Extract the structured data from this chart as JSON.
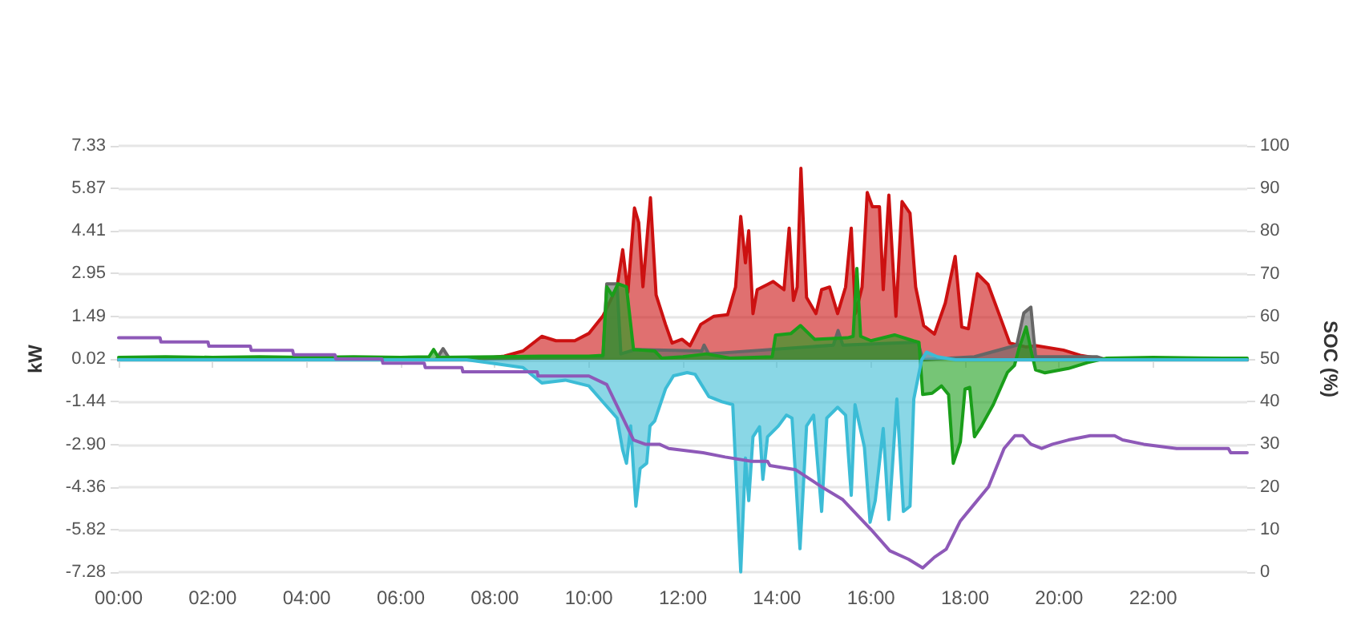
{
  "chart_data": {
    "type": "area",
    "ylabel": "kW",
    "y2label": "SOC (%)",
    "xlim": [
      0,
      24
    ],
    "xticks": [
      {
        "value": 0,
        "label": "00:00"
      },
      {
        "value": 2,
        "label": "02:00"
      },
      {
        "value": 4,
        "label": "04:00"
      },
      {
        "value": 6,
        "label": "06:00"
      },
      {
        "value": 8,
        "label": "08:00"
      },
      {
        "value": 10,
        "label": "10:00"
      },
      {
        "value": 12,
        "label": "12:00"
      },
      {
        "value": 14,
        "label": "14:00"
      },
      {
        "value": 16,
        "label": "16:00"
      },
      {
        "value": 18,
        "label": "18:00"
      },
      {
        "value": 20,
        "label": "20:00"
      },
      {
        "value": 22,
        "label": "22:00"
      }
    ],
    "ylim": [
      -7.28,
      7.33
    ],
    "yticks": [
      -7.28,
      -5.82,
      -4.36,
      {
        "value": -2.9,
        "label": "-2.90"
      },
      -1.44,
      0.02,
      1.49,
      2.95,
      4.41,
      5.87,
      7.33
    ],
    "y2lim": [
      0,
      100
    ],
    "y2ticks": [
      0,
      10,
      20,
      30,
      40,
      50,
      60,
      70,
      80,
      90,
      100
    ],
    "grid": "y",
    "marker": "none",
    "series": [
      {
        "color": "#cc1111",
        "x": [
          0,
          7.5,
          8.2,
          8.6,
          9.0,
          9.3,
          9.7,
          10.0,
          10.3,
          10.6,
          10.72,
          10.83,
          10.97,
          11.06,
          11.15,
          11.31,
          11.43,
          11.63,
          11.77,
          11.98,
          12.15,
          12.38,
          12.66,
          12.95,
          13.12,
          13.23,
          13.33,
          13.4,
          13.49,
          13.58,
          13.8,
          13.92,
          14.15,
          14.26,
          14.35,
          14.43,
          14.51,
          14.63,
          14.83,
          14.95,
          15.12,
          15.29,
          15.46,
          15.58,
          15.67,
          15.81,
          15.92,
          16.03,
          16.18,
          16.26,
          16.38,
          16.53,
          16.66,
          16.83,
          16.95,
          17.12,
          17.35,
          17.58,
          17.79,
          17.93,
          18.07,
          18.26,
          18.49,
          18.72,
          18.95,
          19.29,
          19.52,
          20.09,
          20.45,
          20.78,
          21.0,
          24
        ],
        "values": [
          0,
          0,
          0.12,
          0.3,
          0.8,
          0.65,
          0.65,
          0.9,
          1.5,
          2.5,
          3.77,
          2.31,
          5.2,
          4.7,
          2.5,
          5.55,
          2.22,
          1.21,
          0.57,
          0.7,
          0.48,
          1.21,
          1.49,
          1.54,
          2.49,
          4.91,
          3.32,
          4.42,
          1.58,
          2.4,
          2.58,
          2.68,
          2.4,
          4.51,
          2.03,
          2.49,
          6.56,
          2.13,
          1.58,
          2.4,
          2.49,
          1.58,
          2.49,
          4.51,
          1.58,
          2.49,
          5.73,
          5.24,
          5.24,
          2.4,
          5.64,
          1.49,
          5.42,
          5.02,
          2.49,
          1.17,
          0.88,
          1.94,
          3.54,
          1.12,
          1.06,
          2.95,
          2.58,
          1.58,
          0.57,
          0.44,
          0.48,
          0.33,
          0.15,
          0.06,
          0,
          0
        ]
      },
      {
        "color": "#666666",
        "x": [
          0,
          6.75,
          6.9,
          7.05,
          10.3,
          10.38,
          10.6,
          10.68,
          11.0,
          12.4,
          12.45,
          12.55,
          15.2,
          15.3,
          15.4,
          17.0,
          17.1,
          18.2,
          19.1,
          19.25,
          19.4,
          19.5,
          20.8,
          21,
          24
        ],
        "values": [
          0,
          0,
          0.38,
          0,
          0.1,
          2.6,
          2.6,
          0.2,
          0.35,
          0.3,
          0.5,
          0.2,
          0.5,
          1.0,
          0.5,
          0.6,
          0,
          0.1,
          0.5,
          1.6,
          1.8,
          0.1,
          0.1,
          0,
          0
        ]
      },
      {
        "color": "#1a9e1a",
        "x": [
          0,
          1,
          2,
          3,
          4,
          5,
          6,
          6.6,
          6.7,
          6.8,
          8,
          9,
          10,
          10.3,
          10.38,
          10.5,
          10.62,
          10.8,
          10.95,
          11.4,
          11.55,
          12,
          12.5,
          13,
          13.9,
          13.97,
          14.3,
          14.5,
          14.8,
          15.5,
          15.62,
          15.7,
          15.78,
          16.0,
          16.5,
          16.9,
          17.02,
          17.1,
          17.3,
          17.5,
          17.65,
          17.75,
          17.9,
          18.0,
          18.1,
          18.2,
          18.35,
          18.6,
          18.9,
          19.05,
          19.15,
          19.3,
          19.42,
          19.5,
          19.7,
          20.2,
          20.6,
          21,
          22,
          23,
          24
        ],
        "values": [
          0.08,
          0.1,
          0.08,
          0.1,
          0.08,
          0.1,
          0.08,
          0.1,
          0.35,
          0.08,
          0.1,
          0.12,
          0.12,
          0.15,
          2.5,
          2.2,
          2.6,
          2.5,
          0.35,
          0.3,
          0.05,
          0.1,
          0.2,
          0.05,
          0.1,
          0.84,
          0.9,
          1.17,
          0.7,
          0.75,
          0.8,
          3.13,
          0.8,
          0.65,
          0.85,
          0.65,
          0.6,
          -1.19,
          -1.15,
          -0.9,
          -1.2,
          -3.55,
          -2.82,
          -1.0,
          -0.95,
          -2.64,
          -2.27,
          -1.54,
          -0.44,
          -0.2,
          0.4,
          1.12,
          0.2,
          -0.35,
          -0.45,
          -0.3,
          -0.1,
          0.05,
          0.08,
          0.06,
          0.05
        ]
      },
      {
        "color": "#3cbcd6",
        "x": [
          0,
          7.4,
          8.0,
          8.6,
          9.0,
          9.5,
          10.0,
          10.3,
          10.6,
          10.72,
          10.8,
          10.89,
          11.0,
          11.09,
          11.23,
          11.3,
          11.4,
          11.63,
          11.8,
          12.09,
          12.26,
          12.55,
          12.83,
          13.06,
          13.23,
          13.33,
          13.4,
          13.49,
          13.63,
          13.7,
          13.8,
          14.03,
          14.2,
          14.32,
          14.49,
          14.63,
          14.78,
          14.95,
          15.06,
          15.29,
          15.46,
          15.58,
          15.66,
          15.86,
          15.98,
          16.09,
          16.26,
          16.38,
          16.55,
          16.69,
          16.83,
          16.91,
          17.0,
          17.08,
          17.18,
          17.41,
          17.8,
          24
        ],
        "values": [
          0,
          0,
          -0.13,
          -0.27,
          -0.8,
          -0.7,
          -0.9,
          -1.45,
          -2.0,
          -3.1,
          -3.55,
          -2.27,
          -5.02,
          -3.73,
          -3.55,
          -2.27,
          -2.1,
          -1.0,
          -0.55,
          -0.44,
          -0.5,
          -1.26,
          -1.44,
          -1.54,
          -7.27,
          -3.37,
          -4.83,
          -2.64,
          -2.3,
          -4.1,
          -2.64,
          -2.27,
          -1.9,
          -2.0,
          -6.48,
          -2.27,
          -1.9,
          -5.2,
          -2.0,
          -1.63,
          -1.9,
          -4.65,
          -1.54,
          -3.0,
          -5.57,
          -4.83,
          -2.36,
          -5.48,
          -1.35,
          -5.2,
          -5.02,
          -1.35,
          -0.62,
          0,
          0.26,
          0.1,
          0,
          0
        ]
      },
      {
        "type": "line",
        "axis": "y2",
        "color": "#8e59b8",
        "x": [
          0,
          0.88,
          0.9,
          1.9,
          1.92,
          2.8,
          2.82,
          3.7,
          3.72,
          4.6,
          4.62,
          5.6,
          5.62,
          6.5,
          6.52,
          7.3,
          7.32,
          8.9,
          8.92,
          10.0,
          10.38,
          10.95,
          11.2,
          11.5,
          11.7,
          12.43,
          12.9,
          13.46,
          13.8,
          13.85,
          14.4,
          14.95,
          15.4,
          16.0,
          16.4,
          16.8,
          17.1,
          17.35,
          17.6,
          17.9,
          18.2,
          18.5,
          18.83,
          19.06,
          19.23,
          19.4,
          19.63,
          19.86,
          20.2,
          20.66,
          21.18,
          21.35,
          21.8,
          22.5,
          23.6,
          23.65,
          24
        ],
        "values": [
          55,
          55,
          54,
          54,
          53,
          53,
          52,
          52,
          51,
          51,
          50,
          50,
          49,
          49,
          48,
          48,
          47,
          47,
          46,
          46,
          44,
          31,
          30,
          30,
          29,
          28,
          27,
          26,
          26,
          25,
          24,
          20,
          17,
          10,
          5,
          3,
          1,
          3.5,
          5.4,
          12,
          16,
          20,
          29,
          32,
          32,
          30,
          29,
          30,
          31,
          32,
          32,
          31,
          30,
          29,
          29,
          28,
          28
        ]
      }
    ]
  }
}
